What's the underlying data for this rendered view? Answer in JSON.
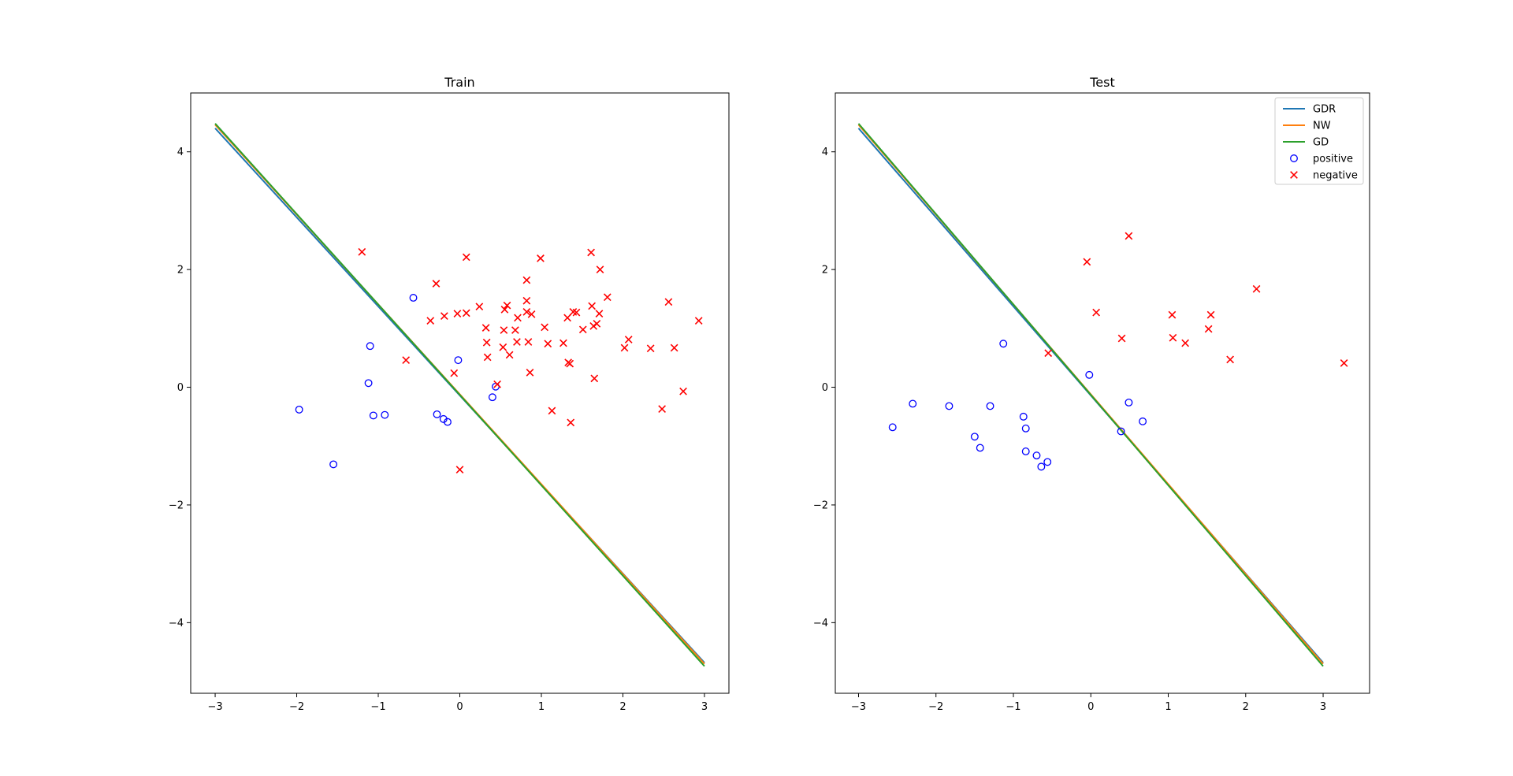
{
  "chart_data": [
    {
      "type": "scatter",
      "title": "Train",
      "xlabel": "",
      "ylabel": "",
      "xlim": [
        -3.3,
        3.3
      ],
      "ylim": [
        -5.2,
        5.0
      ],
      "xticks": [
        -3,
        -2,
        -1,
        0,
        1,
        2,
        3
      ],
      "yticks": [
        -4,
        -2,
        0,
        2,
        4
      ],
      "grid": false,
      "legend": null,
      "lines": [
        {
          "name": "GDR",
          "color": "#1f77b4",
          "x": [
            -3,
            3
          ],
          "y": [
            4.4,
            -4.68
          ]
        },
        {
          "name": "NW",
          "color": "#ff7f0e",
          "x": [
            -3,
            3
          ],
          "y": [
            4.46,
            -4.7
          ]
        },
        {
          "name": "GD",
          "color": "#2ca02c",
          "x": [
            -3,
            3
          ],
          "y": [
            4.48,
            -4.74
          ]
        }
      ],
      "series": [
        {
          "name": "positive",
          "marker": "circle",
          "color": "#0000ff",
          "points": [
            [
              -1.97,
              -0.38
            ],
            [
              -1.55,
              -1.31
            ],
            [
              -1.1,
              0.7
            ],
            [
              -1.12,
              0.07
            ],
            [
              -1.06,
              -0.48
            ],
            [
              -0.92,
              -0.47
            ],
            [
              -0.57,
              1.52
            ],
            [
              -0.28,
              -0.46
            ],
            [
              -0.2,
              -0.54
            ],
            [
              -0.15,
              -0.59
            ],
            [
              -0.02,
              0.46
            ],
            [
              0.4,
              -0.17
            ],
            [
              0.44,
              0.01
            ]
          ]
        },
        {
          "name": "negative",
          "marker": "x",
          "color": "#ff0000",
          "points": [
            [
              -1.2,
              2.3
            ],
            [
              -0.66,
              0.46
            ],
            [
              -0.36,
              1.13
            ],
            [
              -0.29,
              1.76
            ],
            [
              -0.19,
              1.21
            ],
            [
              -0.07,
              0.24
            ],
            [
              -0.03,
              1.25
            ],
            [
              0.0,
              -1.4
            ],
            [
              0.08,
              2.21
            ],
            [
              0.08,
              1.26
            ],
            [
              0.24,
              1.37
            ],
            [
              0.32,
              1.01
            ],
            [
              0.33,
              0.76
            ],
            [
              0.34,
              0.51
            ],
            [
              0.46,
              0.05
            ],
            [
              0.53,
              0.68
            ],
            [
              0.54,
              0.97
            ],
            [
              0.55,
              1.32
            ],
            [
              0.58,
              1.39
            ],
            [
              0.61,
              0.55
            ],
            [
              0.68,
              0.97
            ],
            [
              0.7,
              0.77
            ],
            [
              0.71,
              1.18
            ],
            [
              0.82,
              1.47
            ],
            [
              0.82,
              1.82
            ],
            [
              0.82,
              1.28
            ],
            [
              0.84,
              0.77
            ],
            [
              0.86,
              0.25
            ],
            [
              0.88,
              1.24
            ],
            [
              0.99,
              2.19
            ],
            [
              1.04,
              1.02
            ],
            [
              1.08,
              0.74
            ],
            [
              1.13,
              -0.4
            ],
            [
              1.27,
              0.75
            ],
            [
              1.32,
              1.18
            ],
            [
              1.33,
              0.42
            ],
            [
              1.35,
              0.4
            ],
            [
              1.36,
              -0.6
            ],
            [
              1.39,
              1.28
            ],
            [
              1.43,
              1.27
            ],
            [
              1.51,
              0.98
            ],
            [
              1.61,
              2.29
            ],
            [
              1.62,
              1.38
            ],
            [
              1.64,
              1.04
            ],
            [
              1.65,
              0.15
            ],
            [
              1.68,
              1.08
            ],
            [
              1.71,
              1.25
            ],
            [
              1.72,
              2.0
            ],
            [
              1.81,
              1.53
            ],
            [
              2.02,
              0.67
            ],
            [
              2.07,
              0.81
            ],
            [
              2.34,
              0.66
            ],
            [
              2.48,
              -0.37
            ],
            [
              2.56,
              1.45
            ],
            [
              2.63,
              0.67
            ],
            [
              2.74,
              -0.07
            ],
            [
              2.93,
              1.13
            ]
          ]
        }
      ]
    },
    {
      "type": "scatter",
      "title": "Test",
      "xlabel": "",
      "ylabel": "",
      "xlim": [
        -3.3,
        3.6
      ],
      "ylim": [
        -5.2,
        5.0
      ],
      "xticks": [
        -3,
        -2,
        -1,
        0,
        1,
        2,
        3
      ],
      "yticks": [
        -4,
        -2,
        0,
        2,
        4
      ],
      "grid": false,
      "legend": "top-right",
      "legend_entries": [
        {
          "label": "GDR",
          "kind": "line",
          "color": "#1f77b4"
        },
        {
          "label": "NW",
          "kind": "line",
          "color": "#ff7f0e"
        },
        {
          "label": "GD",
          "kind": "line",
          "color": "#2ca02c"
        },
        {
          "label": "positive",
          "kind": "circle",
          "color": "#0000ff"
        },
        {
          "label": "negative",
          "kind": "x",
          "color": "#ff0000"
        }
      ],
      "lines": [
        {
          "name": "GDR",
          "color": "#1f77b4",
          "x": [
            -3,
            3
          ],
          "y": [
            4.4,
            -4.68
          ]
        },
        {
          "name": "NW",
          "color": "#ff7f0e",
          "x": [
            -3,
            3
          ],
          "y": [
            4.46,
            -4.7
          ]
        },
        {
          "name": "GD",
          "color": "#2ca02c",
          "x": [
            -3,
            3
          ],
          "y": [
            4.48,
            -4.74
          ]
        }
      ],
      "series": [
        {
          "name": "positive",
          "marker": "circle",
          "color": "#0000ff",
          "points": [
            [
              -2.56,
              -0.68
            ],
            [
              -2.3,
              -0.28
            ],
            [
              -1.83,
              -0.32
            ],
            [
              -1.5,
              -0.84
            ],
            [
              -1.43,
              -1.03
            ],
            [
              -1.3,
              -0.32
            ],
            [
              -1.13,
              0.74
            ],
            [
              -0.87,
              -0.5
            ],
            [
              -0.84,
              -0.7
            ],
            [
              -0.84,
              -1.09
            ],
            [
              -0.7,
              -1.16
            ],
            [
              -0.64,
              -1.35
            ],
            [
              -0.56,
              -1.27
            ],
            [
              -0.02,
              0.21
            ],
            [
              0.39,
              -0.75
            ],
            [
              0.49,
              -0.26
            ],
            [
              0.67,
              -0.58
            ]
          ]
        },
        {
          "name": "negative",
          "marker": "x",
          "color": "#ff0000",
          "points": [
            [
              -0.55,
              0.58
            ],
            [
              -0.05,
              2.13
            ],
            [
              0.07,
              1.27
            ],
            [
              0.4,
              0.83
            ],
            [
              0.49,
              2.57
            ],
            [
              1.05,
              1.23
            ],
            [
              1.06,
              0.84
            ],
            [
              1.22,
              0.75
            ],
            [
              1.52,
              0.99
            ],
            [
              1.55,
              1.23
            ],
            [
              1.8,
              0.47
            ],
            [
              2.14,
              1.67
            ],
            [
              3.27,
              0.41
            ]
          ]
        }
      ]
    }
  ]
}
